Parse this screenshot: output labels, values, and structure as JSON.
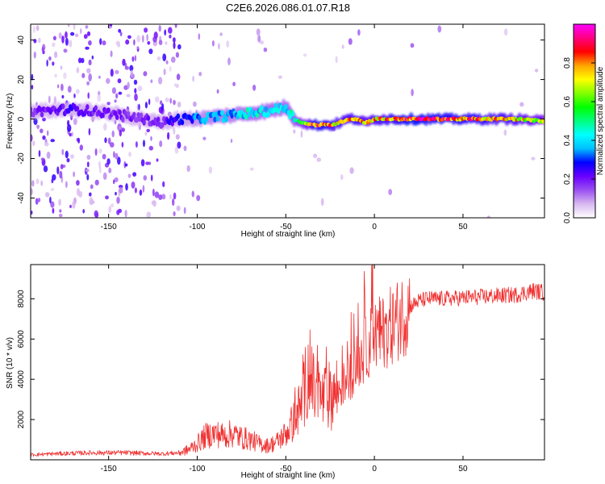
{
  "title": "C2E6.2026.086.01.07.R18",
  "chart_data": [
    {
      "type": "heatmap",
      "xlabel": "Height of straight line (km)",
      "ylabel": "Frequency (Hz)",
      "xlim": [
        -194,
        96
      ],
      "ylim": [
        -50,
        48
      ],
      "xticks": [
        -150,
        -100,
        -50,
        0,
        50
      ],
      "yticks": [
        -40,
        -20,
        0,
        20,
        40
      ],
      "colorbar": {
        "label": "Normalized spectral amplitude",
        "range": [
          0,
          1
        ],
        "ticks": [
          0.0,
          0.2,
          0.4,
          0.6,
          0.8
        ],
        "colors": [
          "#ffffff",
          "#d8b8f0",
          "#9a50f0",
          "#6a00ff",
          "#0000ff",
          "#00bfff",
          "#00ffff",
          "#00ff80",
          "#00ff00",
          "#80ff00",
          "#ffff00",
          "#ffa500",
          "#ff0000",
          "#ff0080",
          "#ff00ff"
        ]
      },
      "ridge": {
        "x": [
          -190,
          -170,
          -150,
          -130,
          -120,
          -110,
          -100,
          -90,
          -80,
          -70,
          -60,
          -50,
          -45,
          -40,
          -35,
          -30,
          -25,
          -20,
          -15,
          -10,
          -5,
          0,
          10,
          20,
          40,
          60,
          80,
          94
        ],
        "freq": [
          4,
          5,
          3,
          0,
          -2,
          0,
          0,
          1,
          2,
          3,
          4,
          6,
          0,
          -2,
          -3,
          -3,
          -3,
          -2,
          0,
          0,
          -2,
          0,
          0,
          0,
          0,
          0,
          0,
          -1
        ],
        "amplitude": [
          0.2,
          0.25,
          0.2,
          0.2,
          0.2,
          0.3,
          0.35,
          0.4,
          0.4,
          0.45,
          0.45,
          0.45,
          0.5,
          0.6,
          0.9,
          0.9,
          0.85,
          0.8,
          0.8,
          0.85,
          0.75,
          0.8,
          0.85,
          0.95,
          0.9,
          0.85,
          0.8,
          0.7
        ]
      }
    },
    {
      "type": "line",
      "xlabel": "Height of straight line (km)",
      "ylabel": "SNR (10 * v/v)",
      "xlim": [
        -194,
        96
      ],
      "ylim": [
        0,
        9700
      ],
      "xticks": [
        -150,
        -100,
        -50,
        0,
        50
      ],
      "yticks": [
        2000,
        4000,
        6000,
        8000
      ],
      "series": [
        {
          "name": "SNR",
          "color": "#f03030",
          "x": [
            -194,
            -180,
            -160,
            -140,
            -120,
            -110,
            -105,
            -100,
            -95,
            -90,
            -85,
            -80,
            -75,
            -70,
            -65,
            -60,
            -55,
            -50,
            -45,
            -40,
            -38,
            -35,
            -30,
            -25,
            -20,
            -15,
            -10,
            -5,
            0,
            5,
            10,
            15,
            20,
            25,
            30,
            40,
            50,
            60,
            70,
            80,
            90,
            96
          ],
          "y": [
            250,
            300,
            350,
            350,
            300,
            350,
            500,
            800,
            1200,
            1300,
            1200,
            1300,
            1100,
            1000,
            800,
            700,
            900,
            1300,
            2000,
            3000,
            4500,
            3500,
            3000,
            3200,
            3500,
            4000,
            4800,
            5500,
            6200,
            6300,
            6700,
            7100,
            7600,
            7900,
            8000,
            8000,
            8050,
            8100,
            8150,
            8200,
            8400,
            8300
          ]
        }
      ]
    }
  ]
}
